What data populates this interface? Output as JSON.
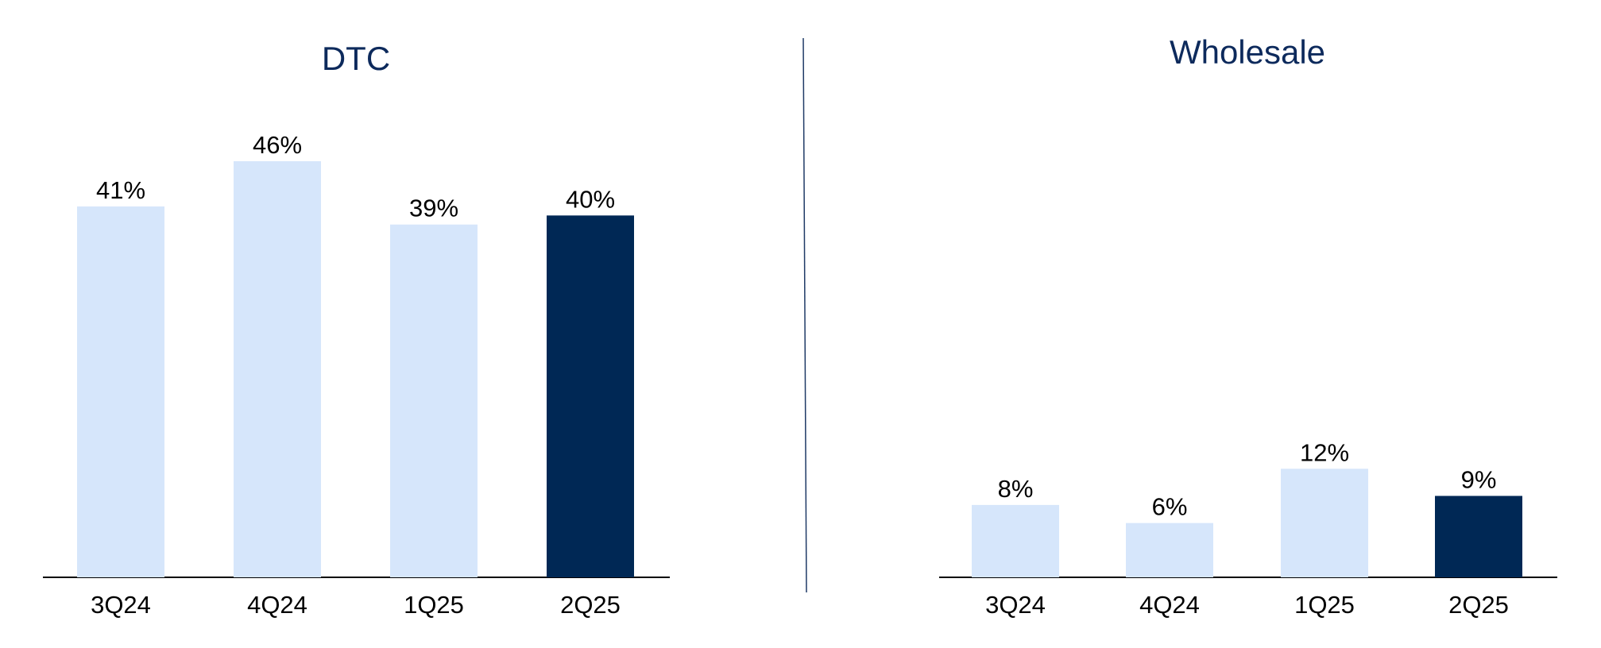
{
  "chart_data": [
    {
      "type": "bar",
      "title": "DTC",
      "categories": [
        "3Q24",
        "4Q24",
        "1Q25",
        "2Q25"
      ],
      "values": [
        41,
        46,
        39,
        40
      ],
      "data_labels": [
        "41%",
        "46%",
        "39%",
        "40%"
      ],
      "highlight_index": 3,
      "unit": "%",
      "ylim": [
        0,
        46
      ],
      "grid": false,
      "legend": "none"
    },
    {
      "type": "bar",
      "title": "Wholesale",
      "categories": [
        "3Q24",
        "4Q24",
        "1Q25",
        "2Q25"
      ],
      "values": [
        8,
        6,
        12,
        9
      ],
      "data_labels": [
        "8%",
        "6%",
        "12%",
        "9%"
      ],
      "highlight_index": 3,
      "unit": "%",
      "ylim": [
        0,
        46
      ],
      "grid": false,
      "legend": "none"
    }
  ],
  "colors": {
    "bar_light": "#d6e6fb",
    "bar_highlight": "#002855",
    "title": "#0d2a5c",
    "text": "#000000",
    "axis": "#000000",
    "divider": "#1f3a66"
  }
}
